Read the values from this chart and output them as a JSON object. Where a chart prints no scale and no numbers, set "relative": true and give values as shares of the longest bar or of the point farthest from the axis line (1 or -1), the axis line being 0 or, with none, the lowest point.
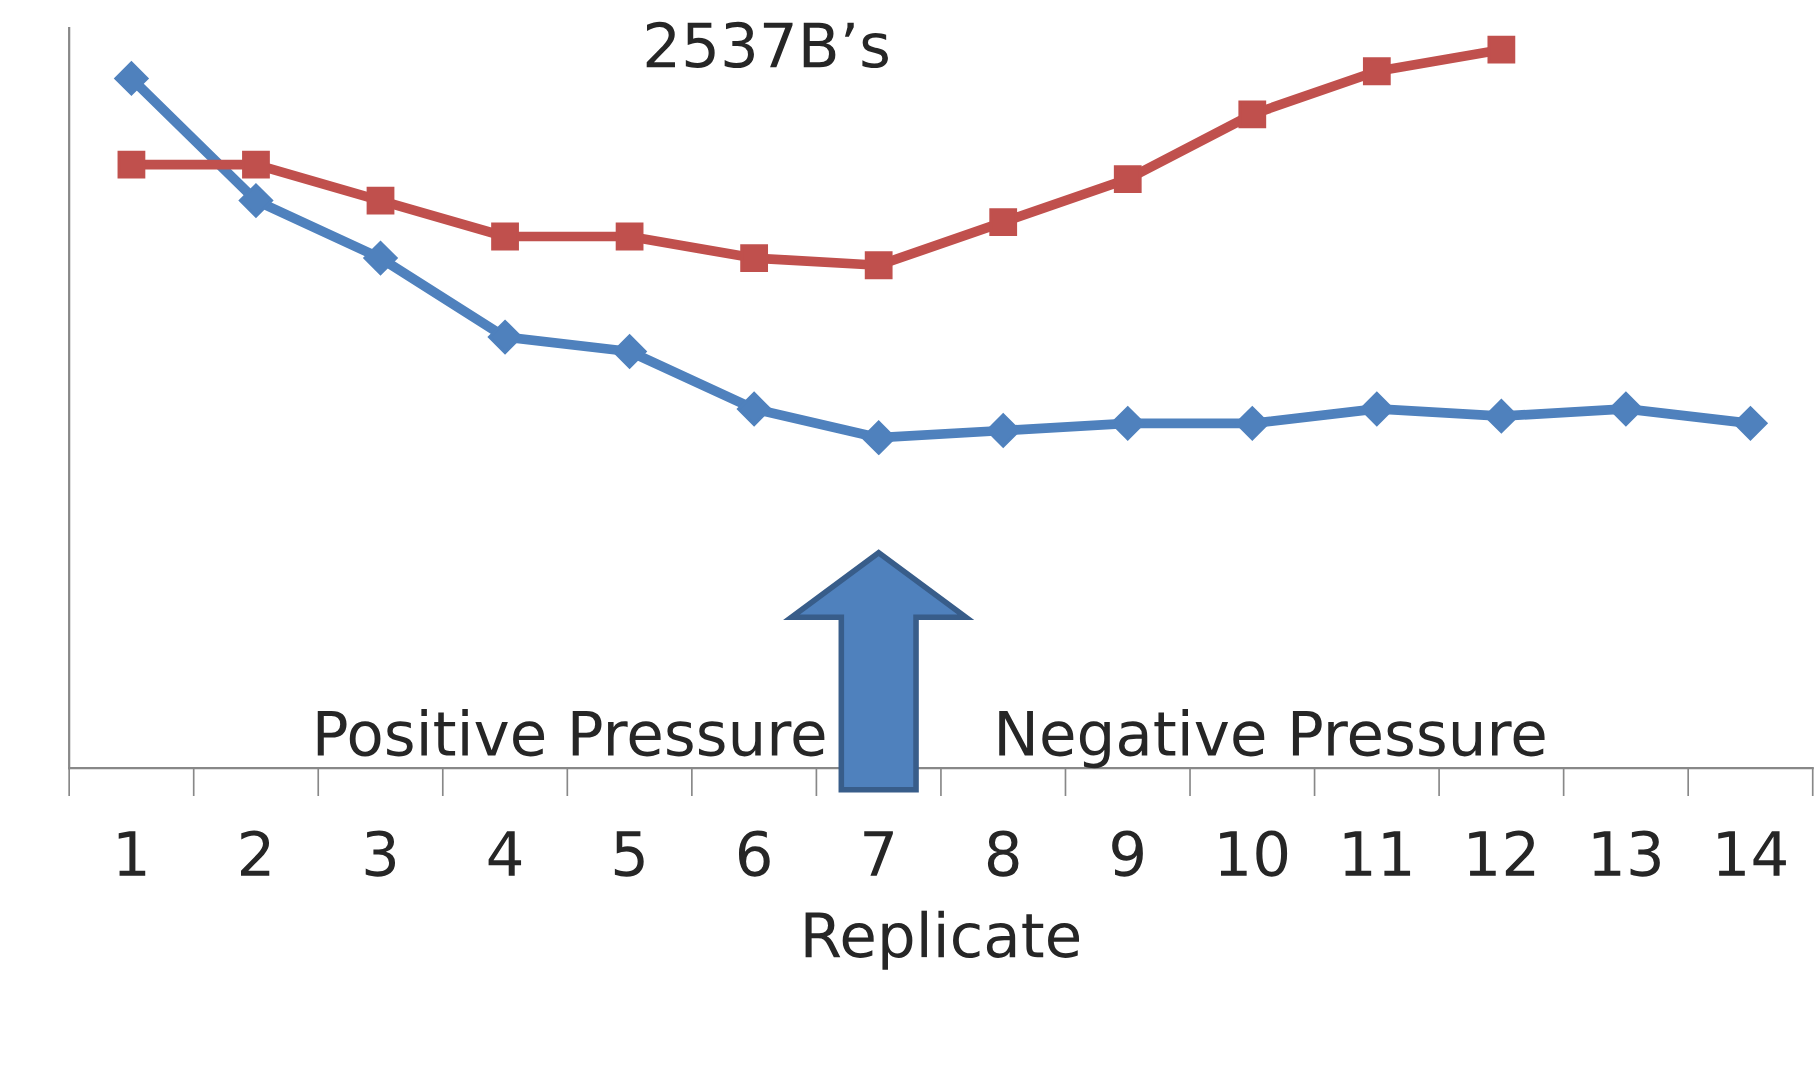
{
  "chart_data": {
    "type": "line",
    "relative": true,
    "xlabel": "Replicate",
    "categories": [
      "1",
      "2",
      "3",
      "4",
      "5",
      "6",
      "7",
      "8",
      "9",
      "10",
      "11",
      "12",
      "13",
      "14"
    ],
    "series": [
      {
        "color": "#4f81bd",
        "marker": "diamond",
        "values": [
          0.96,
          0.79,
          0.71,
          0.6,
          0.58,
          0.5,
          0.46,
          0.47,
          0.48,
          0.48,
          0.5,
          0.49,
          0.5,
          0.48
        ]
      },
      {
        "color": "#c0504d",
        "marker": "square",
        "values": [
          0.84,
          0.84,
          0.79,
          0.74,
          0.74,
          0.71,
          0.7,
          0.76,
          0.82,
          0.91,
          0.97,
          1.0,
          null,
          null
        ]
      }
    ],
    "annotations": [
      "2537B’s",
      "Positive Pressure",
      "Negative Pressure"
    ],
    "tick_labels": "x",
    "grid": false,
    "legend": false
  }
}
